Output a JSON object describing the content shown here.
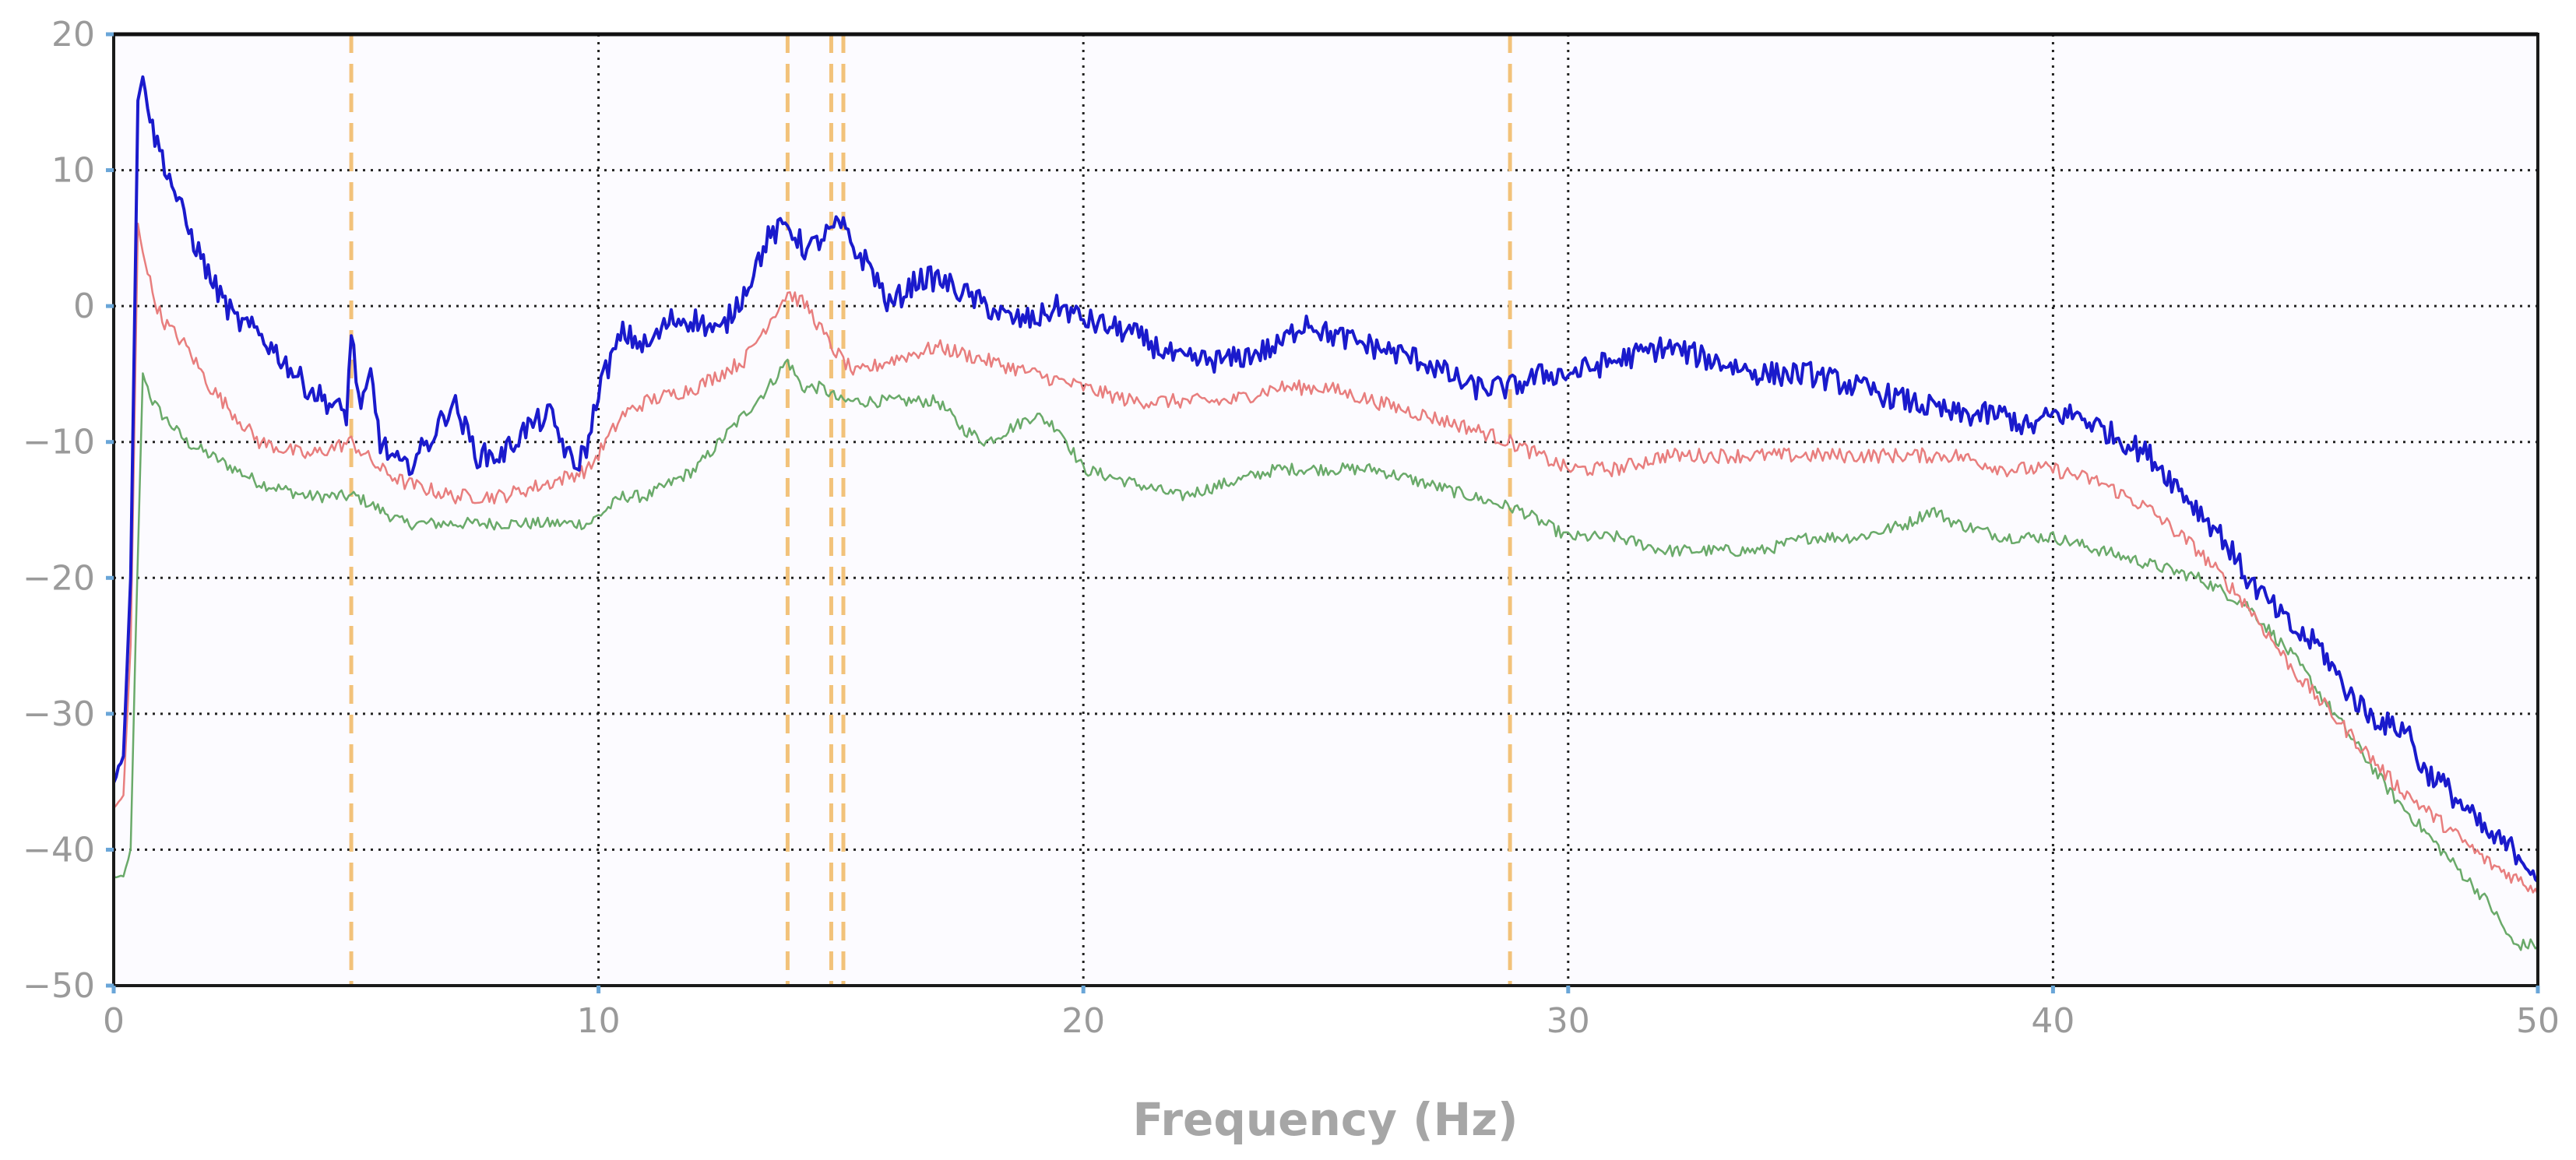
{
  "chart_data": {
    "type": "line",
    "title": "",
    "xlabel": "Frequency (Hz)",
    "ylabel": "",
    "xlim": [
      0,
      50
    ],
    "ylim": [
      -50,
      20
    ],
    "grid": true,
    "legend": "none",
    "x_ticks": [
      0,
      10,
      20,
      30,
      40,
      50
    ],
    "y_ticks": [
      20,
      10,
      0,
      -10,
      -20,
      -30,
      -40,
      -50
    ],
    "x_tick_labels": [
      "0",
      "10",
      "20",
      "30",
      "40",
      "50"
    ],
    "y_tick_labels": [
      "20",
      "10",
      "0",
      "−10",
      "−20",
      "−30",
      "−40",
      "−50"
    ],
    "vlines": [
      {
        "x": 4.9,
        "color": "#f2c27a",
        "style": "dashed"
      },
      {
        "x": 13.9,
        "color": "#f2c27a",
        "style": "dashed"
      },
      {
        "x": 14.8,
        "color": "#f2c27a",
        "style": "dashed"
      },
      {
        "x": 15.05,
        "color": "#f2c27a",
        "style": "dashed"
      },
      {
        "x": 28.8,
        "color": "#f2c27a",
        "style": "dashed"
      }
    ],
    "series": [
      {
        "color": "#1a1acc",
        "noise": 0.9,
        "x": [
          0,
          0.2,
          0.35,
          0.5,
          0.6,
          0.8,
          1,
          1.5,
          2,
          2.5,
          3,
          4,
          4.8,
          4.9,
          5.1,
          5.3,
          5.5,
          5.7,
          6,
          6.5,
          7,
          7.5,
          8,
          8.5,
          9,
          9.5,
          9.8,
          10,
          10.5,
          11,
          11.5,
          12,
          12.5,
          13,
          13.5,
          13.9,
          14.3,
          14.6,
          15,
          15.3,
          15.6,
          16,
          16.3,
          16.6,
          17,
          17.5,
          18,
          18.5,
          19,
          19.5,
          20,
          21,
          22,
          23,
          24,
          24.6,
          25,
          26,
          27,
          28,
          28.8,
          29.5,
          30,
          31,
          32,
          33,
          34,
          35,
          36,
          37,
          38,
          38.5,
          39,
          39.5,
          40,
          40.5,
          41,
          41.5,
          42,
          42.5,
          43,
          43.5,
          44,
          44.5,
          45,
          45.5,
          46,
          46.5,
          47,
          47.3,
          47.6,
          48,
          48.5,
          49,
          49.5,
          49.8,
          50
        ],
        "y": [
          -35,
          -33,
          -20,
          15,
          17,
          13,
          11,
          6,
          2,
          -1,
          -2,
          -6,
          -8,
          -2,
          -8,
          -5,
          -10,
          -11,
          -12,
          -10,
          -7,
          -11,
          -11,
          -9,
          -8,
          -12,
          -10,
          -6,
          -2,
          -3,
          -1,
          -1,
          -2,
          1,
          5,
          6,
          4,
          5,
          6,
          4,
          3,
          0,
          1,
          2,
          2,
          1,
          0,
          -1,
          -1,
          0,
          -1,
          -2,
          -4,
          -4,
          -3,
          -1,
          -2,
          -3,
          -4,
          -6,
          -6,
          -5,
          -5,
          -4,
          -3,
          -4,
          -5,
          -5,
          -6,
          -7,
          -8,
          -8,
          -8,
          -9,
          -8,
          -8,
          -9,
          -10,
          -11,
          -13,
          -15,
          -17,
          -20,
          -22,
          -24,
          -25,
          -28,
          -30,
          -31,
          -31,
          -34,
          -35,
          -37,
          -39,
          -40,
          -41,
          -42
        ]
      },
      {
        "color": "#e87e7e",
        "noise": 0.55,
        "x": [
          0,
          0.2,
          0.35,
          0.5,
          0.6,
          0.8,
          1,
          1.5,
          2,
          2.5,
          3,
          4,
          4.9,
          5.5,
          6,
          7,
          8,
          9,
          9.8,
          10.5,
          11,
          12,
          13,
          13.9,
          14.3,
          14.8,
          15.3,
          16,
          17,
          18,
          19,
          20,
          21,
          22,
          23,
          24,
          25,
          26,
          27,
          28,
          28.8,
          30,
          31,
          32,
          33,
          34,
          35,
          36,
          37,
          38,
          39,
          40,
          41,
          42,
          43,
          44,
          45,
          46,
          47,
          48,
          49,
          49.5,
          50
        ],
        "y": [
          -37,
          -36,
          -25,
          6,
          4,
          1,
          -1,
          -3,
          -6,
          -8,
          -10,
          -11,
          -10,
          -12,
          -13,
          -14,
          -14,
          -13,
          -12,
          -8,
          -7,
          -6,
          -4,
          1,
          0,
          -3,
          -5,
          -4,
          -3,
          -4,
          -5,
          -6,
          -7,
          -7,
          -7,
          -6,
          -6,
          -7,
          -8,
          -9,
          -10,
          -12,
          -12,
          -11,
          -11,
          -11,
          -11,
          -11,
          -11,
          -11,
          -12,
          -12,
          -13,
          -15,
          -18,
          -22,
          -27,
          -31,
          -35,
          -38,
          -41,
          -42,
          -43
        ]
      },
      {
        "color": "#6aaa6a",
        "noise": 0.45,
        "x": [
          0,
          0.2,
          0.35,
          0.45,
          0.6,
          0.8,
          1,
          1.5,
          2,
          2.5,
          3,
          4,
          5,
          6,
          7,
          8,
          9,
          9.8,
          10.5,
          11,
          12,
          13,
          13.5,
          13.9,
          14.2,
          14.6,
          15,
          15.5,
          16,
          17,
          17.5,
          18,
          18.5,
          19,
          19.5,
          20,
          21,
          22,
          23,
          24,
          25,
          26,
          27,
          28,
          29,
          30,
          31,
          32,
          33,
          34,
          35,
          36,
          37,
          37.5,
          38,
          39,
          40,
          41,
          42,
          43,
          44,
          45,
          46,
          47,
          48,
          49,
          49.5,
          50
        ],
        "y": [
          -42,
          -42,
          -40,
          -25,
          -5,
          -7,
          -8,
          -10,
          -11,
          -12,
          -13,
          -14,
          -14,
          -16,
          -16,
          -16,
          -16,
          -16,
          -14,
          -14,
          -12,
          -8,
          -6,
          -4,
          -6,
          -6,
          -7,
          -7,
          -7,
          -7,
          -9,
          -10,
          -9,
          -8,
          -9,
          -12,
          -13,
          -14,
          -13,
          -12,
          -12,
          -12,
          -13,
          -14,
          -15,
          -17,
          -17,
          -18,
          -18,
          -18,
          -17,
          -17,
          -16,
          -15,
          -16,
          -17,
          -17,
          -18,
          -19,
          -20,
          -22,
          -26,
          -31,
          -36,
          -40,
          -44,
          -47,
          -47
        ]
      }
    ]
  }
}
